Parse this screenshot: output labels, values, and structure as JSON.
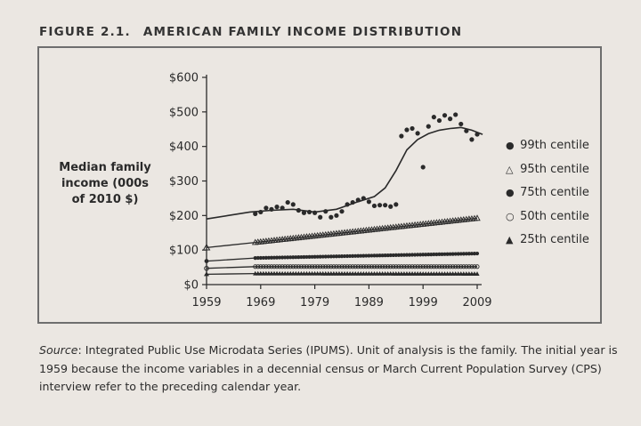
{
  "figure": {
    "number": "FIGURE 2.1.",
    "title": "AMERICAN FAMILY INCOME DISTRIBUTION"
  },
  "ylabel_lines": [
    "Median family",
    "income (000s",
    "of 2010 $)"
  ],
  "caption": {
    "lead": "Source",
    "text": ": Integrated Public Use Microdata Series (IPUMS). Unit of analysis is the family. The initial year is 1959 because the income variables in a decennial census or March Current Population Survey (CPS) interview refer to the preceding calendar year."
  },
  "chart_data": {
    "type": "line",
    "title": "AMERICAN FAMILY INCOME DISTRIBUTION",
    "ylabel": "Median family income (000s of 2010 $)",
    "ylim": [
      0,
      600
    ],
    "xlim": [
      1959,
      2010
    ],
    "x_ticks": [
      "1959",
      "1969",
      "1979",
      "1989",
      "1999",
      "2009"
    ],
    "y_ticks": [
      "$0",
      "$100",
      "$200",
      "$300",
      "$400",
      "$500",
      "$600"
    ],
    "legend_position": "right",
    "colors": {
      "ink": "#2a2a2a",
      "frame": "#6e6e6e",
      "background": "#ebe7e2"
    },
    "series": [
      {
        "name": "99th centile",
        "marker": "●",
        "points_x": [
          1968,
          1969,
          1970,
          1971,
          1972,
          1973,
          1974,
          1975,
          1976,
          1977,
          1978,
          1979,
          1980,
          1981,
          1982,
          1983,
          1984,
          1985,
          1986,
          1987,
          1988,
          1989,
          1990,
          1991,
          1992,
          1993,
          1994,
          1995,
          1996,
          1997,
          1998,
          1999,
          2000,
          2001,
          2002,
          2003,
          2004,
          2005,
          2006,
          2007,
          2008,
          2009
        ],
        "points_y": [
          205,
          210,
          222,
          218,
          225,
          222,
          238,
          232,
          215,
          208,
          210,
          208,
          195,
          212,
          195,
          200,
          212,
          232,
          238,
          245,
          250,
          240,
          228,
          230,
          230,
          226,
          232,
          430,
          448,
          452,
          438,
          340,
          458,
          485,
          475,
          490,
          480,
          492,
          465,
          445,
          420,
          435
        ],
        "curve_x": [
          1959,
          1963,
          1967,
          1971,
          1975,
          1979,
          1983,
          1987,
          1990,
          1992,
          1994,
          1996,
          1998,
          2000,
          2002,
          2004,
          2006,
          2008,
          2010
        ],
        "curve_y": [
          190,
          200,
          210,
          215,
          218,
          210,
          218,
          240,
          255,
          280,
          330,
          390,
          420,
          437,
          447,
          452,
          455,
          447,
          435
        ]
      },
      {
        "name": "95th centile",
        "marker": "△",
        "x_start": 1968,
        "x_end": 2009,
        "line": [
          [
            1959,
            107
          ],
          [
            1968,
            122
          ],
          [
            2009,
            192
          ]
        ]
      },
      {
        "name": "75th centile",
        "marker": "●",
        "x_start": 1968,
        "x_end": 2009,
        "line": [
          [
            1959,
            68
          ],
          [
            1968,
            77
          ],
          [
            2009,
            90
          ]
        ]
      },
      {
        "name": "50th centile",
        "marker": "○",
        "x_start": 1968,
        "x_end": 2009,
        "line": [
          [
            1959,
            47
          ],
          [
            1968,
            52
          ],
          [
            2009,
            52
          ]
        ]
      },
      {
        "name": "25th centile",
        "marker": "▲",
        "x_start": 1968,
        "x_end": 2009,
        "line": [
          [
            1959,
            30
          ],
          [
            1968,
            32
          ],
          [
            2009,
            31
          ]
        ]
      }
    ]
  }
}
